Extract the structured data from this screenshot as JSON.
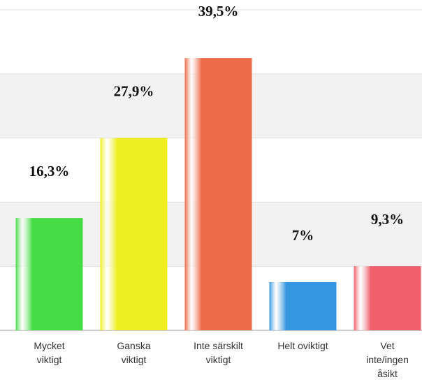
{
  "chart_data": {
    "type": "bar",
    "categories": [
      "Mycket viktigt",
      "Ganska viktigt",
      "Inte särskilt viktigt",
      "Helt oviktigt",
      "Vet inte/ingen åsikt"
    ],
    "values": [
      16.3,
      27.9,
      39.5,
      7,
      9.3
    ],
    "value_labels": [
      "16,3%",
      "27,9%",
      "39,5%",
      "7%",
      "9,3%"
    ],
    "colors": [
      "#46dc46",
      "#eeee22",
      "#ef6a48",
      "#3597e0",
      "#ef5f6c"
    ],
    "ylim": [
      0,
      46.5
    ],
    "yticks": [
      0,
      9.3,
      18.6,
      27.9,
      37.2,
      46.5
    ],
    "grid": true,
    "ytick_labels": false
  }
}
